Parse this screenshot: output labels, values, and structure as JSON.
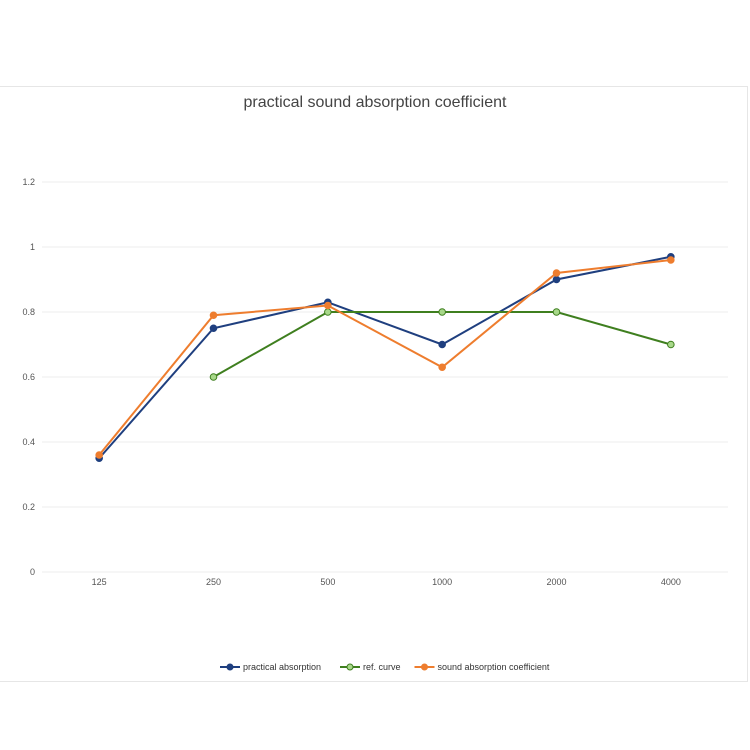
{
  "chart_data": {
    "type": "line",
    "title": "practical sound absorption coefficient",
    "categories": [
      "125",
      "250",
      "500",
      "1000",
      "2000",
      "4000"
    ],
    "ylim": [
      0,
      1.2
    ],
    "yticks": [
      "0",
      "0.2",
      "0.4",
      "0.6",
      "0.8",
      "1",
      "1.2"
    ],
    "grid": true,
    "legend_position": "bottom",
    "series": [
      {
        "name": "practical absorption",
        "color": "#1f3f7f",
        "marker_fill": "#1f3f7f",
        "values": [
          0.35,
          0.75,
          0.83,
          0.7,
          0.9,
          0.97
        ]
      },
      {
        "name": "ref. curve",
        "color": "#3f7f1f",
        "marker_fill": "#a8d88a",
        "values": [
          null,
          0.6,
          0.8,
          0.8,
          0.8,
          0.7
        ]
      },
      {
        "name": "sound absorption coefficient",
        "color": "#ee7d2e",
        "marker_fill": "#ee7d2e",
        "values": [
          0.36,
          0.79,
          0.82,
          0.63,
          0.92,
          0.96
        ]
      }
    ]
  }
}
